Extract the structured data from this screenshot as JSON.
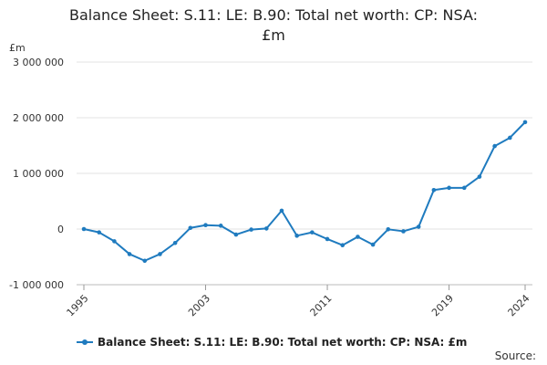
{
  "chart_data": {
    "type": "line",
    "title_line1": "Balance Sheet: S.11: LE: B.90: Total net worth: CP: NSA:",
    "title_line2": "£m",
    "unit_label": "£m",
    "xlabel": "",
    "ylabel": "£m",
    "x_tick_labels": [
      "1995",
      "2003",
      "2011",
      "2019",
      "2024"
    ],
    "y_tick_labels": [
      "3 000 000",
      "2 000 000",
      "1 000 000",
      "0",
      "-1 000 000"
    ],
    "y_ticks": [
      3000000,
      2000000,
      1000000,
      0,
      -1000000
    ],
    "ylim": [
      -1000000,
      3000000
    ],
    "xlim": [
      1995,
      2024
    ],
    "grid": true,
    "legend_position": "bottom",
    "series": [
      {
        "name": "Balance Sheet: S.11: LE: B.90: Total net worth: CP: NSA: £m",
        "color": "#1f7bbf",
        "x": [
          1995,
          1996,
          1997,
          1998,
          1999,
          2000,
          2001,
          2002,
          2003,
          2004,
          2005,
          2006,
          2007,
          2008,
          2009,
          2010,
          2011,
          2012,
          2013,
          2014,
          2015,
          2016,
          2017,
          2018,
          2019,
          2020,
          2021,
          2022,
          2023,
          2024
        ],
        "values": [
          0,
          -60000,
          -220000,
          -450000,
          -570000,
          -450000,
          -250000,
          20000,
          70000,
          60000,
          -100000,
          -10000,
          10000,
          330000,
          -120000,
          -60000,
          -180000,
          -290000,
          -140000,
          -280000,
          -5000,
          -40000,
          40000,
          700000,
          740000,
          740000,
          940000,
          1490000,
          1640000,
          1920000
        ]
      }
    ],
    "source_label": "Source:"
  }
}
